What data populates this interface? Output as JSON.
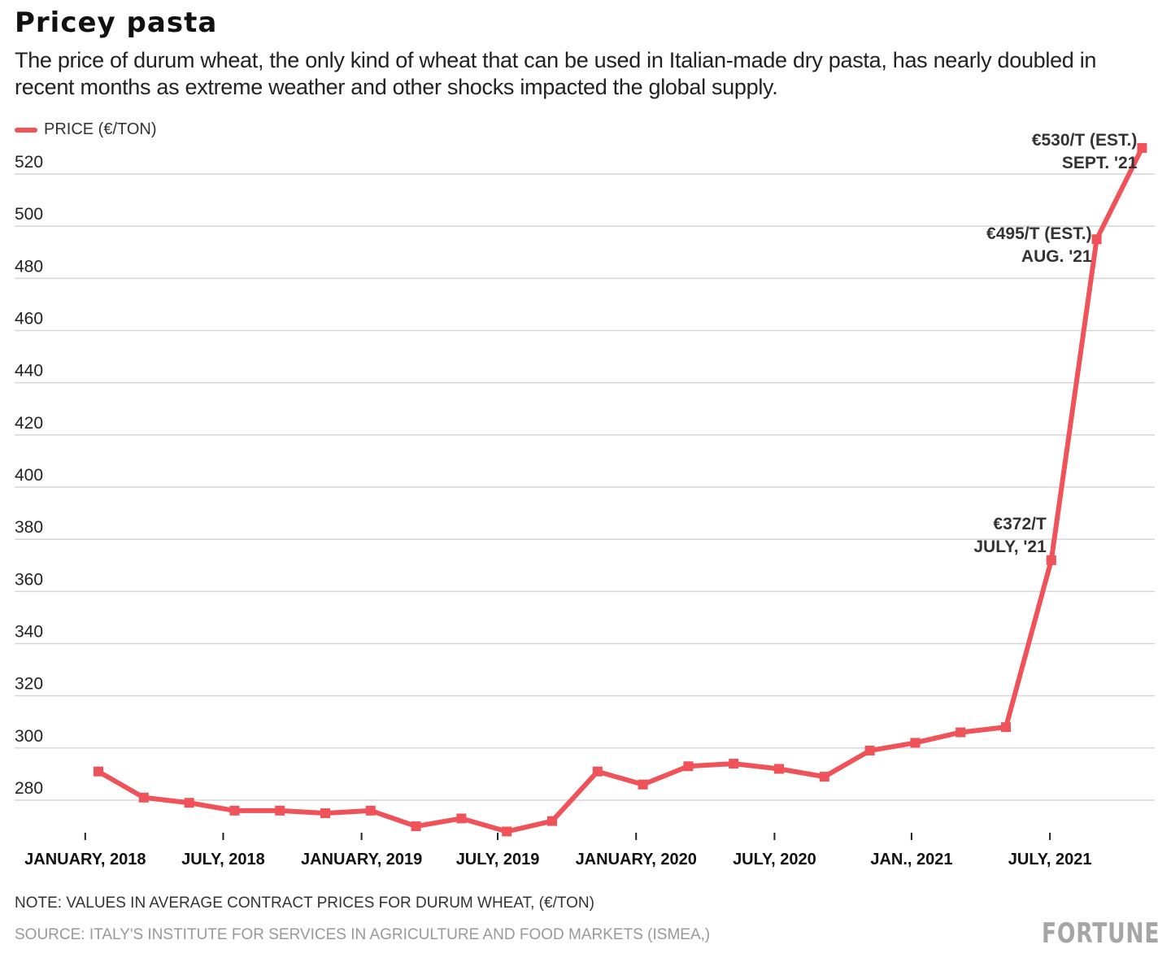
{
  "title": "Pricey pasta",
  "subtitle": "The price of durum wheat, the only kind of wheat that can be used in Italian-made dry pasta, has nearly doubled in recent months as extreme weather and other shocks impacted the global supply.",
  "note": "NOTE: VALUES IN AVERAGE CONTRACT PRICES FOR DURUM WHEAT, (€/TON)",
  "source": "SOURCE: ITALY'S INSTITUTE FOR SERVICES IN AGRICULTURE AND FOOD MARKETS (ISMEA,)",
  "logo": "FORTUNE",
  "chart_data": {
    "type": "line",
    "color": "#f0525a",
    "grid": true,
    "legend_placement": "top-left",
    "series": [
      {
        "name": "PRICE (€/TON)",
        "values": [
          291,
          281,
          279,
          276,
          276,
          275,
          276,
          270,
          273,
          268,
          272,
          291,
          286,
          293,
          294,
          292,
          289,
          299,
          302,
          306,
          308,
          372,
          495,
          530
        ]
      }
    ],
    "ylim": [
      264,
      532
    ],
    "yticks": [
      280,
      300,
      320,
      340,
      360,
      380,
      400,
      420,
      440,
      460,
      480,
      500,
      520
    ],
    "xticks": [
      {
        "label": "JANUARY, 2018",
        "at": -0.29
      },
      {
        "label": "JULY, 2018",
        "at": 2.75
      },
      {
        "label": "JANUARY, 2019",
        "at": 5.8
      },
      {
        "label": "JULY, 2019",
        "at": 8.8
      },
      {
        "label": "JANUARY, 2020",
        "at": 11.85
      },
      {
        "label": "JULY, 2020",
        "at": 14.9
      },
      {
        "label": "JAN., 2021",
        "at": 17.92
      },
      {
        "label": "JULY, 2021",
        "at": 20.97
      }
    ],
    "annotations": [
      {
        "index": 21,
        "lines": [
          "€372/T",
          "JULY, '21"
        ]
      },
      {
        "index": 22,
        "lines": [
          "€495/T (EST.)",
          "AUG. '21"
        ]
      },
      {
        "index": 23,
        "lines": [
          "€530/T (EST.)",
          "SEPT. '21"
        ]
      }
    ]
  }
}
